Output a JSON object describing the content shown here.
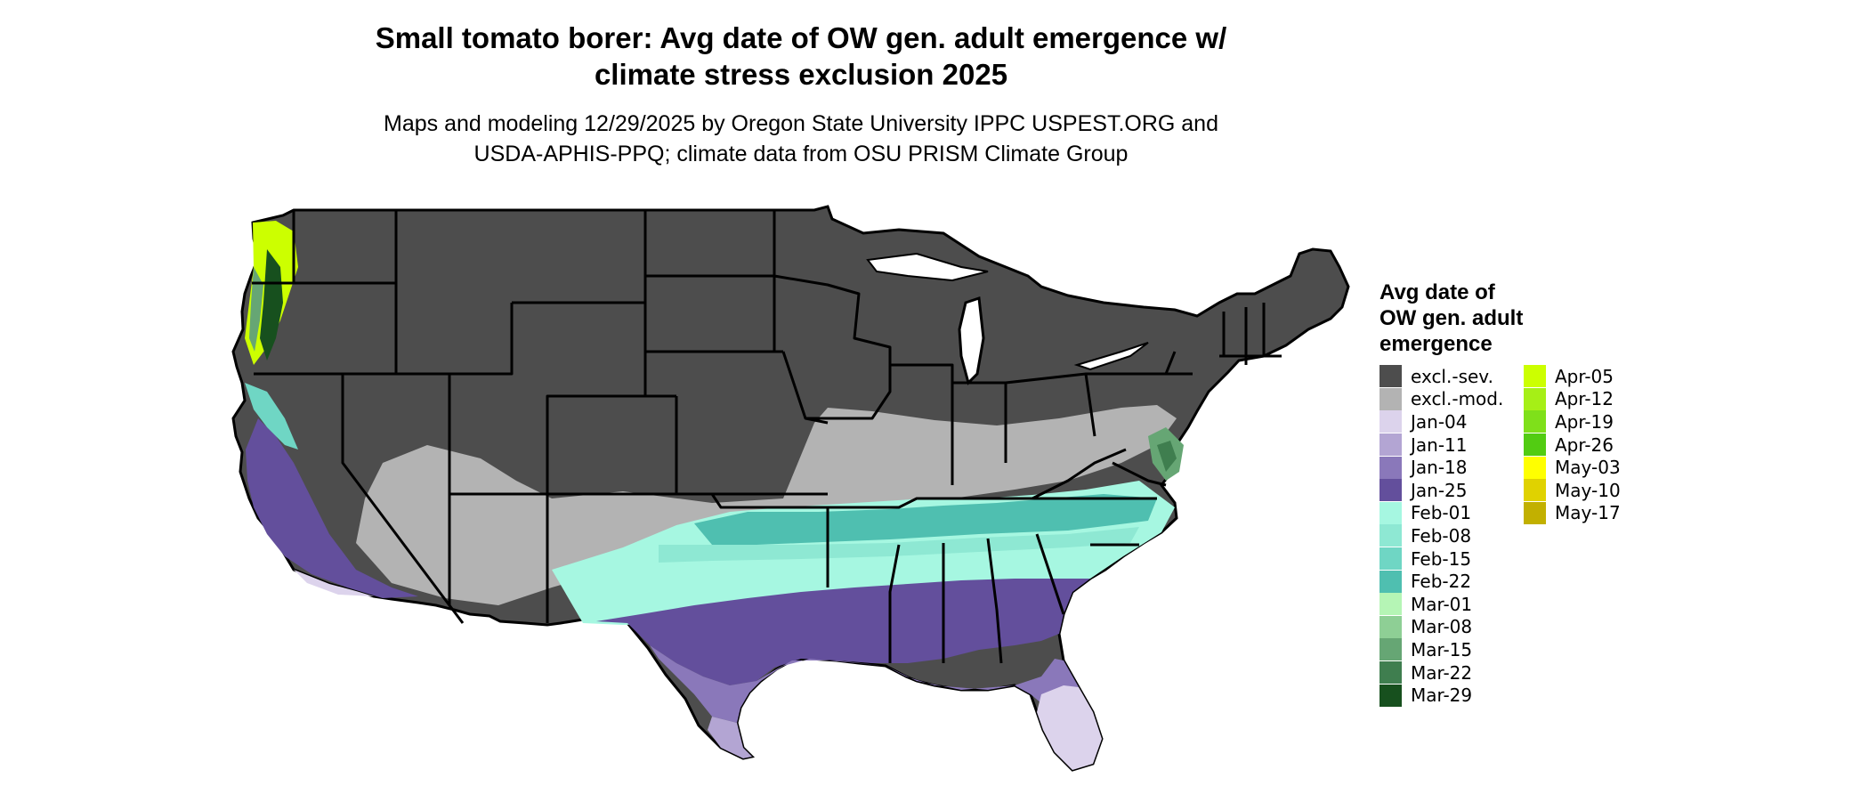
{
  "title": {
    "line1": "Small tomato borer: Avg date of OW gen. adult emergence w/",
    "line2": "climate stress exclusion 2025"
  },
  "subtitle": {
    "line1": "Maps and modeling 12/29/2025 by Oregon State University IPPC USPEST.ORG and",
    "line2": "USDA-APHIS-PPQ; climate data from OSU PRISM Climate Group"
  },
  "legend": {
    "title_line1": "Avg date of",
    "title_line2": "OW gen. adult",
    "title_line3": "emergence",
    "col1": [
      {
        "label": "excl.-sev.",
        "color": "#4d4d4d"
      },
      {
        "label": "excl.-mod.",
        "color": "#b3b3b3"
      },
      {
        "label": "Jan-04",
        "color": "#dcd3ec"
      },
      {
        "label": "Jan-11",
        "color": "#b3a5d3"
      },
      {
        "label": "Jan-18",
        "color": "#8a78ba"
      },
      {
        "label": "Jan-25",
        "color": "#634f9c"
      },
      {
        "label": "Feb-01",
        "color": "#a6f7e1"
      },
      {
        "label": "Feb-08",
        "color": "#8ee8d3"
      },
      {
        "label": "Feb-15",
        "color": "#6fd6c4"
      },
      {
        "label": "Feb-22",
        "color": "#4fbfb0"
      },
      {
        "label": "Mar-01",
        "color": "#b5f5b5"
      },
      {
        "label": "Mar-08",
        "color": "#8ecf95"
      },
      {
        "label": "Mar-15",
        "color": "#66a674"
      },
      {
        "label": "Mar-22",
        "color": "#3f7e4f"
      },
      {
        "label": "Mar-29",
        "color": "#17501e"
      }
    ],
    "col2": [
      {
        "label": "Apr-05",
        "color": "#ccff00"
      },
      {
        "label": "Apr-12",
        "color": "#a6ef16"
      },
      {
        "label": "Apr-19",
        "color": "#7fe01a"
      },
      {
        "label": "Apr-26",
        "color": "#52cc12"
      },
      {
        "label": "May-03",
        "color": "#ffff00"
      },
      {
        "label": "May-10",
        "color": "#e0d200"
      },
      {
        "label": "May-17",
        "color": "#c2b000"
      }
    ]
  }
}
